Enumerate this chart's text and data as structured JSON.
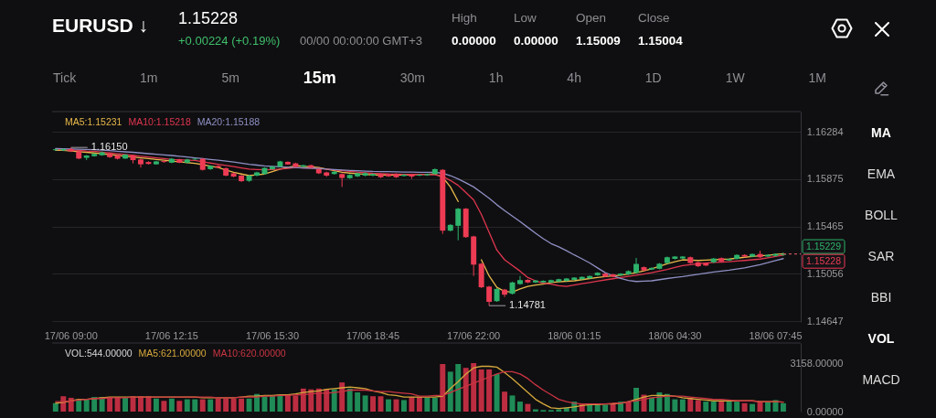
{
  "chart_data": [
    {
      "type": "other",
      "title": "EURUSD ↓",
      "subtitle": "1.15228",
      "annotations": [
        "+0.00224 (+0.19%)",
        "00/00 00:00:00 GMT+3",
        "High",
        "0.00000",
        "Low",
        "0.00000",
        "Open",
        "1.15009",
        "Close",
        "1.15004"
      ]
    },
    {
      "type": "other",
      "annotations": [
        "Tick",
        "1m",
        "5m",
        "15m",
        "30m",
        "1h",
        "4h",
        "1D",
        "1W",
        "1M"
      ]
    },
    {
      "type": "candlestick",
      "categories": [
        null,
        null,
        "17/06 09:00",
        null,
        null,
        null,
        null,
        null,
        null,
        null,
        null,
        null,
        null,
        null,
        null,
        "17/06 12:15",
        null,
        null,
        null,
        null,
        null,
        null,
        null,
        null,
        null,
        null,
        null,
        null,
        "17/06 15:30",
        null,
        null,
        null,
        null,
        null,
        null,
        null,
        null,
        null,
        null,
        null,
        null,
        "17/06 18:45",
        null,
        null,
        null,
        null,
        null,
        null,
        null,
        null,
        null,
        null,
        null,
        null,
        "17/06 22:00",
        null,
        null,
        null,
        null,
        null,
        null,
        null,
        null,
        null,
        null,
        null,
        null,
        "18/06 01:15",
        null,
        null,
        null,
        null,
        null,
        null,
        null,
        null,
        null,
        null,
        null,
        null,
        "18/06 04:30",
        null,
        null,
        null,
        null,
        null,
        null,
        null,
        null,
        null,
        null,
        null,
        null,
        "18/06 07:45",
        null
      ],
      "ohlc": [
        [
          1.16126,
          1.16138,
          1.1612,
          1.16134
        ],
        [
          1.16124,
          1.1614,
          1.16118,
          1.16136
        ],
        [
          1.16136,
          1.1615,
          1.1611,
          1.16116
        ],
        [
          1.16116,
          1.1612,
          1.16048,
          1.16054
        ],
        [
          1.1606,
          1.16084,
          1.1604,
          1.1608
        ],
        [
          1.16074,
          1.161,
          1.1607,
          1.16094
        ],
        [
          1.16082,
          1.16114,
          1.16078,
          1.16108
        ],
        [
          1.16094,
          1.161,
          1.1606,
          1.16066
        ],
        [
          1.16082,
          1.16086,
          1.16046,
          1.16052
        ],
        [
          1.16054,
          1.16092,
          1.1605,
          1.16088
        ],
        [
          1.16082,
          1.16088,
          1.16012,
          1.1604
        ],
        [
          1.16046,
          1.16052,
          1.15976,
          1.16004
        ],
        [
          1.16024,
          1.1603,
          1.16002,
          1.16007
        ],
        [
          1.16004,
          1.16034,
          1.16,
          1.16029
        ],
        [
          1.16032,
          1.16038,
          1.16018,
          1.16024
        ],
        [
          1.16018,
          1.16058,
          1.16014,
          1.16052
        ],
        [
          1.16046,
          1.16052,
          1.16014,
          1.16018
        ],
        [
          1.16018,
          1.16052,
          1.16012,
          1.16046
        ],
        [
          1.16046,
          1.16058,
          1.1604,
          1.16052
        ],
        [
          1.16052,
          1.16058,
          1.1595,
          1.15956
        ],
        [
          1.15962,
          1.15996,
          1.15956,
          1.1599
        ],
        [
          1.1599,
          1.15996,
          1.1597,
          1.15976
        ],
        [
          1.1597,
          1.15976,
          1.159,
          1.15906
        ],
        [
          1.15926,
          1.15932,
          1.15892,
          1.15898
        ],
        [
          1.15906,
          1.15912,
          1.15852,
          1.15858
        ],
        [
          1.15861,
          1.15912,
          1.15852,
          1.15906
        ],
        [
          1.15906,
          1.1594,
          1.159,
          1.15934
        ],
        [
          1.1592,
          1.15978,
          1.15914,
          1.15973
        ],
        [
          1.15962,
          1.1599,
          1.15956,
          1.15984
        ],
        [
          1.15984,
          1.16034,
          1.1598,
          1.16029
        ],
        [
          1.16024,
          1.1603,
          1.16,
          1.16004
        ],
        [
          1.16012,
          1.16018,
          1.15976,
          1.15982
        ],
        [
          1.15984,
          1.16,
          1.1598,
          1.15996
        ],
        [
          1.15996,
          1.16,
          1.1597,
          1.15976
        ],
        [
          1.15962,
          1.15968,
          1.1592,
          1.15926
        ],
        [
          1.15934,
          1.1594,
          1.15896,
          1.15906
        ],
        [
          1.1592,
          1.15946,
          1.15914,
          1.1594
        ],
        [
          1.1592,
          1.15926,
          1.15808,
          1.15886
        ],
        [
          1.15884,
          1.15918,
          1.15878,
          1.15912
        ],
        [
          1.159,
          1.15932,
          1.15894,
          1.15926
        ],
        [
          1.15906,
          1.15934,
          1.159,
          1.15928
        ],
        [
          1.15906,
          1.15926,
          1.159,
          1.1592
        ],
        [
          1.1592,
          1.15926,
          1.15886,
          1.15892
        ],
        [
          1.15914,
          1.1592,
          1.15895,
          1.159
        ],
        [
          1.1592,
          1.15926,
          1.15886,
          1.15892
        ],
        [
          1.15903,
          1.1592,
          1.15898,
          1.15914
        ],
        [
          1.15914,
          1.1592,
          1.15878,
          1.15898
        ],
        [
          1.15906,
          1.15918,
          1.15902,
          1.15914
        ],
        [
          1.15909,
          1.15924,
          1.15904,
          1.1592
        ],
        [
          1.1592,
          1.15968,
          1.15914,
          1.15962
        ],
        [
          1.15956,
          1.15962,
          1.15402,
          1.1543
        ],
        [
          1.1543,
          1.15486,
          1.15424,
          1.1548
        ],
        [
          1.15472,
          1.15626,
          1.15346,
          1.1562
        ],
        [
          1.1562,
          1.15626,
          1.15368,
          1.15374
        ],
        [
          1.1538,
          1.15386,
          1.15038,
          1.15136
        ],
        [
          1.15144,
          1.1515,
          1.14934,
          1.1494
        ],
        [
          1.14946,
          1.14952,
          1.14781,
          1.14814
        ],
        [
          1.1482,
          1.14932,
          1.14814,
          1.14926
        ],
        [
          1.1492,
          1.14926,
          1.14856,
          1.14876
        ],
        [
          1.14884,
          1.14988,
          1.14878,
          1.14982
        ],
        [
          1.14968,
          1.15038,
          1.14962,
          1.15002
        ],
        [
          1.15004,
          1.1501,
          1.14976,
          1.14982
        ],
        [
          1.14982,
          1.15004,
          1.14976,
          1.14999
        ],
        [
          1.14982,
          1.15,
          1.14978,
          1.14996
        ],
        [
          1.14982,
          1.15006,
          1.14976,
          1.15002
        ],
        [
          1.1499,
          1.15014,
          1.14986,
          1.1501
        ],
        [
          1.14996,
          1.1502,
          1.1499,
          1.15016
        ],
        [
          1.15004,
          1.15028,
          1.15,
          1.15024
        ],
        [
          1.1501,
          1.15034,
          1.15006,
          1.1503
        ],
        [
          1.15018,
          1.15042,
          1.15014,
          1.15038
        ],
        [
          1.15044,
          1.1507,
          1.1504,
          1.15066
        ],
        [
          1.15058,
          1.15064,
          1.15028,
          1.15032
        ],
        [
          1.15052,
          1.15056,
          1.15026,
          1.15032
        ],
        [
          1.15044,
          1.15062,
          1.1504,
          1.15058
        ],
        [
          1.15052,
          1.15086,
          1.15048,
          1.1508
        ],
        [
          1.15066,
          1.15194,
          1.1506,
          1.15142
        ],
        [
          1.15114,
          1.1512,
          1.1508,
          1.15086
        ],
        [
          1.15094,
          1.15112,
          1.1509,
          1.15108
        ],
        [
          1.151,
          1.1515,
          1.15096,
          1.15144
        ],
        [
          1.1515,
          1.15206,
          1.15144,
          1.152
        ],
        [
          1.15186,
          1.1521,
          1.1518,
          1.15206
        ],
        [
          1.15189,
          1.1521,
          1.15184,
          1.15206
        ],
        [
          1.152,
          1.15206,
          1.15144,
          1.1515
        ],
        [
          1.15156,
          1.1516,
          1.15116,
          1.15122
        ],
        [
          1.1515,
          1.15154,
          1.15124,
          1.15128
        ],
        [
          1.15156,
          1.15194,
          1.1515,
          1.15189
        ],
        [
          1.15192,
          1.15198,
          1.15158,
          1.15164
        ],
        [
          1.15172,
          1.15188,
          1.15168,
          1.15184
        ],
        [
          1.15186,
          1.15226,
          1.1518,
          1.1522
        ],
        [
          1.1522,
          1.15226,
          1.152,
          1.15206
        ],
        [
          1.15206,
          1.15232,
          1.152,
          1.15228
        ],
        [
          1.15228,
          1.15256,
          1.15194,
          1.152
        ],
        [
          1.15206,
          1.15226,
          1.152,
          1.1522
        ],
        [
          1.15212,
          1.15234,
          1.15206,
          1.15228
        ],
        [
          1.1522,
          1.1524,
          1.15212,
          1.15228
        ]
      ],
      "colors": [
        "#2db36b",
        "#2db36b",
        "#ee3b54",
        "#ee3b54",
        "#2db36b",
        "#2db36b",
        "#2db36b",
        "#ee3b54",
        "#ee3b54",
        "#2db36b",
        "#ee3b54",
        "#ee3b54",
        "#ee3b54",
        "#2db36b",
        "#ee3b54",
        "#2db36b",
        "#ee3b54",
        "#2db36b",
        "#2db36b",
        "#ee3b54",
        "#2db36b",
        "#ee3b54",
        "#ee3b54",
        "#ee3b54",
        "#ee3b54",
        "#2db36b",
        "#2db36b",
        "#2db36b",
        "#2db36b",
        "#2db36b",
        "#ee3b54",
        "#ee3b54",
        "#2db36b",
        "#ee3b54",
        "#ee3b54",
        "#ee3b54",
        "#2db36b",
        "#ee3b54",
        "#2db36b",
        "#2db36b",
        "#2db36b",
        "#2db36b",
        "#ee3b54",
        "#ee3b54",
        "#ee3b54",
        "#2db36b",
        "#ee3b54",
        "#2db36b",
        "#2db36b",
        "#2db36b",
        "#ee3b54",
        "#2db36b",
        "#2db36b",
        "#ee3b54",
        "#ee3b54",
        "#ee3b54",
        "#ee3b54",
        "#2db36b",
        "#ee3b54",
        "#2db36b",
        "#2db36b",
        "#ee3b54",
        "#2db36b",
        "#2db36b",
        "#2db36b",
        "#2db36b",
        "#2db36b",
        "#2db36b",
        "#2db36b",
        "#2db36b",
        "#2db36b",
        "#ee3b54",
        "#ee3b54",
        "#2db36b",
        "#2db36b",
        "#2db36b",
        "#ee3b54",
        "#2db36b",
        "#2db36b",
        "#2db36b",
        "#2db36b",
        "#2db36b",
        "#ee3b54",
        "#ee3b54",
        "#ee3b54",
        "#2db36b",
        "#ee3b54",
        "#2db36b",
        "#2db36b",
        "#ee3b54",
        "#2db36b",
        "#ee3b54",
        "#2db36b",
        "#2db36b",
        "#2db36b"
      ],
      "series": [
        {
          "name": "MA5:1.15231",
          "type": "line",
          "color": "#e8b84a",
          "values": [
            1.16124,
            1.16124,
            1.16119,
            1.16113,
            1.16108,
            1.16102,
            1.16095,
            1.16088,
            1.16081,
            1.16074,
            1.16067,
            1.1606,
            1.16053,
            1.16046,
            1.16039,
            1.16032,
            1.16026,
            1.16019,
            1.16012,
            1.16001,
            1.15989,
            1.15976,
            1.15955,
            1.15934,
            1.1592,
            1.15906,
            1.15913,
            1.1592,
            1.15941,
            1.15962,
            1.15977,
            1.15993,
            1.15987,
            1.15982,
            1.15976,
            1.15962,
            1.15948,
            1.15934,
            1.15928,
            1.15923,
            1.15917,
            1.15912,
            1.15912,
            1.15912,
            1.15912,
            1.15912,
            1.15914,
            1.15917,
            1.15917,
            1.1592,
            1.15892,
            1.15808,
            1.15682,
            null,
            null,
            1.15178,
            1.15038,
            1.1494,
            1.14904,
            1.14898,
            1.14926,
            1.14948,
            1.1496,
            1.14968,
            1.14982,
            1.14988,
            1.14992,
            1.14996,
            1.15006,
            1.15016,
            1.15024,
            1.15032,
            1.15038,
            1.15044,
            1.15055,
            1.15066,
            1.15083,
            1.151,
            1.15122,
            1.15144,
            1.15161,
            1.15178,
            1.15175,
            1.15172,
            1.15175,
            1.15178,
            1.15181,
            1.15184,
            1.15192,
            1.152,
            1.15206,
            1.15212,
            1.15216,
            1.15225,
            1.15231
          ]
        },
        {
          "name": "MA10:1.15218",
          "type": "line",
          "color": "#e0364f",
          "values": [
            1.16132,
            1.1613,
            1.16127,
            1.16124,
            1.16119,
            1.16116,
            1.16109,
            1.16102,
            1.16095,
            1.16088,
            1.16081,
            1.16074,
            1.16067,
            1.1606,
            1.16053,
            1.16046,
            1.16043,
            1.1604,
            1.16038,
            1.16026,
            1.16015,
            1.16004,
            1.15994,
            1.15984,
            1.15973,
            1.15962,
            1.15959,
            1.15956,
            1.15959,
            1.15962,
            1.15969,
            1.15976,
            1.15973,
            1.1597,
            1.15968,
            1.15962,
            1.15955,
            1.15948,
            1.15942,
            1.15937,
            1.15931,
            1.15926,
            1.15923,
            1.1592,
            1.15919,
            1.15917,
            1.15916,
            1.15916,
            1.15915,
            1.15914,
            1.159,
            1.15864,
            1.15822,
            1.1576,
            1.15696,
            1.1557,
            1.15416,
            1.15262,
            1.15178,
            1.15128,
            1.1508,
            1.15024,
            1.14996,
            1.14976,
            1.14968,
            1.14954,
            1.14948,
            1.1496,
            1.14971,
            1.14982,
            1.14993,
            1.15004,
            1.15014,
            1.15024,
            1.15034,
            1.15044,
            1.15055,
            1.15066,
            1.1508,
            1.15094,
            1.15111,
            1.15128,
            1.15136,
            1.15144,
            1.1515,
            1.15156,
            1.15158,
            1.15161,
            1.15167,
            1.15172,
            1.15178,
            1.15184,
            1.15195,
            1.15206,
            1.15218
          ]
        },
        {
          "name": "MA20:1.15188",
          "type": "line",
          "color": "#8f8fc4",
          "values": [
            1.1614,
            1.16138,
            1.16136,
            1.16134,
            1.16133,
            1.1613,
            1.16126,
            1.16122,
            1.16116,
            1.16112,
            1.16108,
            1.16102,
            1.16096,
            1.16091,
            1.16085,
            1.1608,
            1.16074,
            1.16067,
            1.1606,
            1.16053,
            1.16046,
            1.1604,
            1.16032,
            1.16024,
            1.16014,
            1.16004,
            1.15997,
            1.1599,
            1.15986,
            1.15982,
            1.15979,
            1.15976,
            1.15973,
            1.1597,
            1.15968,
            1.15962,
            1.15958,
            1.15954,
            1.15951,
            1.15948,
            1.15945,
            1.15942,
            1.15941,
            1.1594,
            1.15938,
            1.15937,
            1.15936,
            1.15935,
            1.15935,
            1.15934,
            1.15926,
            1.15906,
            1.15878,
            1.15844,
            1.15808,
            1.1576,
            1.1571,
            1.15654,
            1.15604,
            1.15556,
            1.15508,
            1.15458,
            1.15408,
            1.1536,
            1.15318,
            1.1529,
            1.15256,
            1.1522,
            1.15186,
            1.1515,
            1.15108,
            1.15066,
            1.15038,
            1.15016,
            1.14999,
            1.1499,
            1.14993,
            1.14996,
            1.15006,
            1.15016,
            1.15024,
            1.15032,
            1.15042,
            1.15052,
            1.15062,
            1.15072,
            1.1508,
            1.15088,
            1.15098,
            1.15108,
            1.15122,
            1.15136,
            1.15153,
            1.15172,
            1.15188
          ]
        }
      ],
      "ylim": [
        1.1464,
        1.1646
      ],
      "yticks": [
        1.16284,
        1.15875,
        1.15465,
        1.15056,
        1.14647
      ],
      "grid": "y",
      "legend": "top left",
      "ref_lines": [
        {
          "axis": "y",
          "value": 1.15229,
          "label": "1.15229",
          "color": "#2db36b",
          "line_style": "dashed"
        },
        {
          "axis": "y",
          "value": 1.15228,
          "label": "1.15228",
          "color": "#ee3b54",
          "line_style": "dashed"
        }
      ],
      "annotations": [
        {
          "text": "1.16150",
          "x": "17/06 09:00",
          "y": 1.1615
        },
        "1.14781"
      ]
    },
    {
      "type": "bar",
      "categories": [
        null,
        null,
        null,
        null,
        null,
        null,
        null,
        null,
        null,
        null,
        null,
        null,
        null,
        null,
        null,
        null,
        null,
        null,
        null,
        null,
        null,
        null,
        null,
        null,
        null,
        null,
        null,
        null,
        null,
        null,
        null,
        null,
        null,
        null,
        null,
        null,
        null,
        null,
        null,
        null,
        null,
        null,
        null,
        null,
        null,
        null,
        null,
        null,
        null,
        null,
        null,
        null,
        null,
        null,
        null,
        null,
        null,
        null,
        null,
        null,
        null,
        null,
        null,
        null,
        null,
        null,
        null,
        null,
        null,
        null,
        null,
        null,
        null,
        null,
        null,
        null,
        null,
        null,
        null,
        null,
        null,
        null,
        null,
        null,
        null,
        null,
        null,
        null,
        null,
        null,
        null,
        null,
        null,
        null,
        null
      ],
      "annotations": [
        "VOL:544.00000"
      ],
      "series": [
        {
          "values": [
            550,
            1000,
            900,
            800,
            800,
            950,
            950,
            950,
            950,
            900,
            1000,
            1000,
            1000,
            850,
            700,
            850,
            700,
            800,
            800,
            800,
            800,
            850,
            850,
            850,
            850,
            850,
            1150,
            1000,
            1050,
            1050,
            1100,
            1050,
            1500,
            1450,
            1500,
            1450,
            1450,
            1900,
            1500,
            1250,
            1050,
            1000,
            1000,
            800,
            800,
            750,
            950,
            950,
            900,
            900,
            3100,
            2600,
            3100,
            2850,
            3158,
            2750,
            2750,
            2450,
            1300,
            1050,
            650,
            500,
            150,
            100,
            100,
            150,
            250,
            650,
            500,
            450,
            450,
            450,
            500,
            650,
            650,
            1550,
            1100,
            900,
            1250,
            1150,
            800,
            800,
            900,
            750,
            650,
            650,
            700,
            650,
            650,
            550,
            500,
            650,
            650,
            750,
            544
          ],
          "colors": [
            "#1f8c57",
            "#bd2d41",
            "#bd2d41",
            "#1f8c57",
            "#1f8c57",
            "#1f8c57",
            "#1f8c57",
            "#bd2d41",
            "#bd2d41",
            "#1f8c57",
            "#bd2d41",
            "#bd2d41",
            "#bd2d41",
            "#1f8c57",
            "#bd2d41",
            "#1f8c57",
            "#bd2d41",
            "#1f8c57",
            "#1f8c57",
            "#bd2d41",
            "#1f8c57",
            "#bd2d41",
            "#bd2d41",
            "#bd2d41",
            "#bd2d41",
            "#1f8c57",
            "#1f8c57",
            "#1f8c57",
            "#1f8c57",
            "#1f8c57",
            "#bd2d41",
            "#bd2d41",
            "#bd2d41",
            "#bd2d41",
            "#bd2d41",
            "#bd2d41",
            "#1f8c57",
            "#bd2d41",
            "#1f8c57",
            "#1f8c57",
            "#1f8c57",
            "#bd2d41",
            "#bd2d41",
            "#1f8c57",
            "#bd2d41",
            "#1f8c57",
            "#bd2d41",
            "#bd2d41",
            "#1f8c57",
            "#1f8c57",
            "#bd2d41",
            "#1f8c57",
            "#1f8c57",
            "#bd2d41",
            "#bd2d41",
            "#bd2d41",
            "#bd2d41",
            "#1f8c57",
            "#bd2d41",
            "#1f8c57",
            "#1f8c57",
            "#bd2d41",
            "#1f8c57",
            "#1f8c57",
            "#1f8c57",
            "#1f8c57",
            "#1f8c57",
            "#1f8c57",
            "#bd2d41",
            "#1f8c57",
            "#1f8c57",
            "#1f8c57",
            "#bd2d41",
            "#1f8c57",
            "#bd2d41",
            "#1f8c57",
            "#bd2d41",
            "#1f8c57",
            "#1f8c57",
            "#1f8c57",
            "#1f8c57",
            "#1f8c57",
            "#bd2d41",
            "#bd2d41",
            "#1f8c57",
            "#1f8c57",
            "#bd2d41",
            "#1f8c57",
            "#1f8c57",
            "#bd2d41",
            "#1f8c57",
            "#bd2d41",
            "#1f8c57",
            "#1f8c57",
            "#1f8c57"
          ]
        },
        {
          "name": "MA5:621.00000",
          "type": "line",
          "color": "#d6a83c",
          "values": [
            550,
            600,
            700,
            800,
            800,
            850,
            900,
            950,
            950,
            950,
            950,
            950,
            950,
            950,
            950,
            950,
            950,
            950,
            950,
            900,
            900,
            900,
            900,
            900,
            950,
            1000,
            1000,
            1050,
            1050,
            1100,
            1100,
            1150,
            1250,
            1300,
            1350,
            1450,
            1500,
            1550,
            1600,
            1550,
            1500,
            1350,
            1250,
            1100,
            1050,
            950,
            950,
            950,
            950,
            950,
            1000,
            1500,
            1950,
            2450,
            2850,
            2950,
            2950,
            2900,
            2550,
            2150,
            1700,
            1250,
            800,
            500,
            250,
            200,
            250,
            300,
            400,
            450,
            450,
            500,
            500,
            550,
            650,
            800,
            950,
            1050,
            1050,
            1050,
            1000,
            900,
            850,
            800,
            750,
            700,
            700,
            700,
            700,
            700,
            700,
            650,
            650,
            650,
            621
          ]
        },
        {
          "name": "MA10:620.00000",
          "type": "line",
          "color": "#c93442",
          "values": [
            650,
            650,
            700,
            750,
            800,
            850,
            850,
            900,
            900,
            900,
            950,
            950,
            950,
            950,
            950,
            950,
            950,
            950,
            950,
            950,
            950,
            900,
            900,
            900,
            950,
            950,
            950,
            1000,
            1000,
            1050,
            1050,
            1100,
            1100,
            1150,
            1200,
            1200,
            1250,
            1300,
            1400,
            1400,
            1400,
            1350,
            1300,
            1300,
            1250,
            1200,
            1150,
            1000,
            1000,
            1050,
            1050,
            1250,
            1450,
            1650,
            1850,
            2050,
            2250,
            2450,
            2600,
            2600,
            2450,
            2150,
            1750,
            1400,
            1100,
            800,
            650,
            550,
            500,
            500,
            500,
            500,
            550,
            550,
            650,
            700,
            800,
            900,
            950,
            1000,
            1000,
            1000,
            950,
            900,
            850,
            800,
            800,
            750,
            700,
            700,
            700,
            650,
            650,
            650,
            620
          ]
        }
      ],
      "ylim": [
        0,
        4470
      ],
      "yticks": [
        {
          "value": 3158,
          "label": "3158.00000"
        },
        {
          "value": 0,
          "label": "0.00000"
        }
      ],
      "legend": "top left"
    },
    {
      "type": "other",
      "annotations": [
        "MA",
        "EMA",
        "BOLL",
        "SAR",
        "BBI",
        "VOL",
        "MACD"
      ]
    }
  ]
}
